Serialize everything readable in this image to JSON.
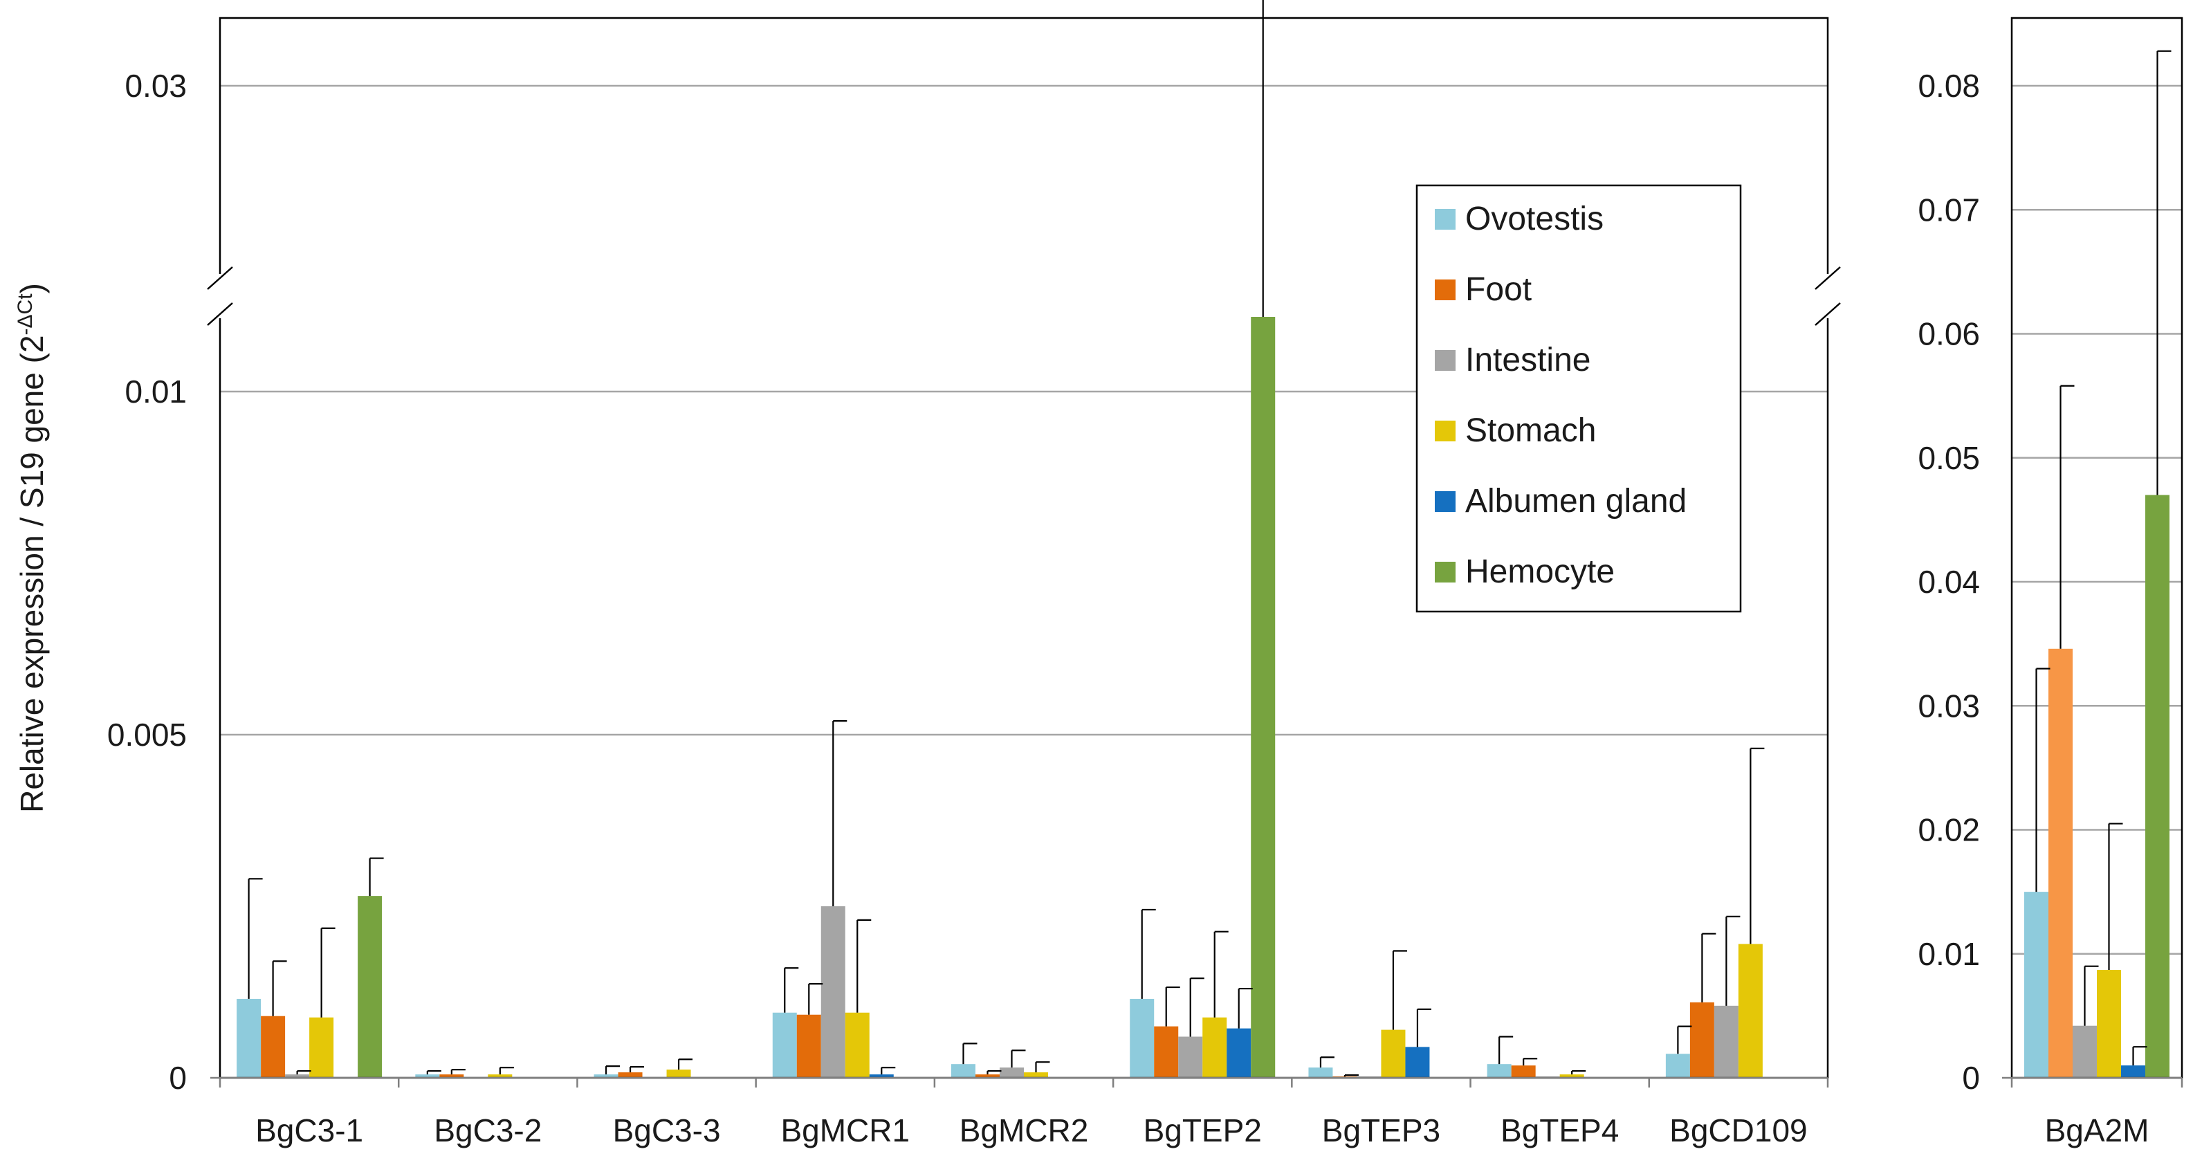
{
  "chart_data": [
    {
      "type": "bar",
      "ylabel": "Relative expression / S19 gene (2",
      "ylabel_sup": "-ΔCt",
      "ylabel_close": ")",
      "axis_break": {
        "lower_max": 0.01,
        "upper_min": 0.0284
      },
      "yticks": [
        {
          "value": 0,
          "label": "0"
        },
        {
          "value": 0.005,
          "label": "0.005"
        },
        {
          "value": 0.01,
          "label": "0.01"
        },
        {
          "value": 0.03,
          "label": "0.03"
        }
      ],
      "ylim": [
        0,
        0.0322
      ],
      "grid": true,
      "legend_position": "upper-right (inside plot)",
      "categories": [
        "BgC3-1",
        "BgC3-2",
        "BgC3-3",
        "BgMCR1",
        "BgMCR2",
        "BgTEP2",
        "BgTEP3",
        "BgTEP4",
        "BgCD109"
      ],
      "series": [
        {
          "name": "Ovotestis",
          "color": "#8ecbdc",
          "values": [
            0.00115,
            5e-05,
            5e-05,
            0.00095,
            0.0002,
            0.00115,
            0.00015,
            0.0002,
            0.00035
          ],
          "errors": [
            0.00175,
            5e-05,
            0.00012,
            0.00065,
            0.0003,
            0.0013,
            0.00015,
            0.0004,
            0.0004
          ]
        },
        {
          "name": "Foot",
          "color": "#e36c0a",
          "values": [
            0.0009,
            5e-05,
            8e-05,
            0.00092,
            5e-05,
            0.00075,
            2e-05,
            0.00018,
            0.0011
          ],
          "errors": [
            0.0008,
            7e-05,
            8e-05,
            0.00045,
            5e-05,
            0.00057,
            2e-05,
            0.0001,
            0.001
          ]
        },
        {
          "name": "Intestine",
          "color": "#a5a5a5",
          "values": [
            5e-05,
            0.0,
            0.0,
            0.0025,
            0.00015,
            0.0006,
            2e-05,
            2e-05,
            0.00105
          ],
          "errors": [
            5e-05,
            0.0,
            0.0,
            0.0027,
            0.00025,
            0.00085,
            0.0,
            0.0,
            0.0013
          ]
        },
        {
          "name": "Stomach",
          "color": "#e4c708",
          "values": [
            0.00088,
            5e-05,
            0.00012,
            0.00095,
            8e-05,
            0.00088,
            0.0007,
            5e-05,
            0.00195
          ],
          "errors": [
            0.0013,
            0.0001,
            0.00015,
            0.00135,
            0.00015,
            0.00125,
            0.00115,
            5e-05,
            0.00285
          ]
        },
        {
          "name": "Albumen gland",
          "color": "#1570c0",
          "values": [
            0.0,
            0.0,
            0.0,
            5e-05,
            0.0,
            0.00072,
            0.00045,
            0.0,
            0.0
          ],
          "errors": [
            0.0,
            0.0,
            0.0,
            0.0001,
            0.0,
            0.00058,
            0.00055,
            0.0,
            0.0
          ]
        },
        {
          "name": "Hemocyte",
          "color": "#77a33f",
          "values": [
            0.00265,
            0.0,
            0.0,
            0.0,
            0.0,
            0.0237,
            0.0,
            0.0,
            0.0
          ],
          "errors": [
            0.00055,
            0.0,
            0.0,
            0.0,
            0.0,
            0.0092,
            0.0,
            0.0,
            0.0
          ]
        }
      ]
    },
    {
      "type": "bar",
      "ylim": [
        0,
        0.086
      ],
      "yticks": [
        {
          "value": 0,
          "label": "0"
        },
        {
          "value": 0.01,
          "label": "0.01"
        },
        {
          "value": 0.02,
          "label": "0.02"
        },
        {
          "value": 0.03,
          "label": "0.03"
        },
        {
          "value": 0.04,
          "label": "0.04"
        },
        {
          "value": 0.05,
          "label": "0.05"
        },
        {
          "value": 0.06,
          "label": "0.06"
        },
        {
          "value": 0.07,
          "label": "0.07"
        },
        {
          "value": 0.08,
          "label": "0.08"
        }
      ],
      "grid": true,
      "categories": [
        "BgA2M"
      ],
      "series": [
        {
          "name": "Ovotestis",
          "color": "#8ecbdc",
          "values": [
            0.015
          ],
          "errors": [
            0.018
          ]
        },
        {
          "name": "Foot",
          "color": "#f79646",
          "values": [
            0.0346
          ],
          "errors": [
            0.0212
          ]
        },
        {
          "name": "Intestine",
          "color": "#a5a5a5",
          "values": [
            0.0042
          ],
          "errors": [
            0.0048
          ]
        },
        {
          "name": "Stomach",
          "color": "#e4c708",
          "values": [
            0.0087
          ],
          "errors": [
            0.0118
          ]
        },
        {
          "name": "Albumen gland",
          "color": "#1570c0",
          "values": [
            0.001
          ],
          "errors": [
            0.0015
          ]
        },
        {
          "name": "Hemocyte",
          "color": "#77a33f",
          "values": [
            0.047
          ],
          "errors": [
            0.0358
          ]
        }
      ]
    }
  ]
}
